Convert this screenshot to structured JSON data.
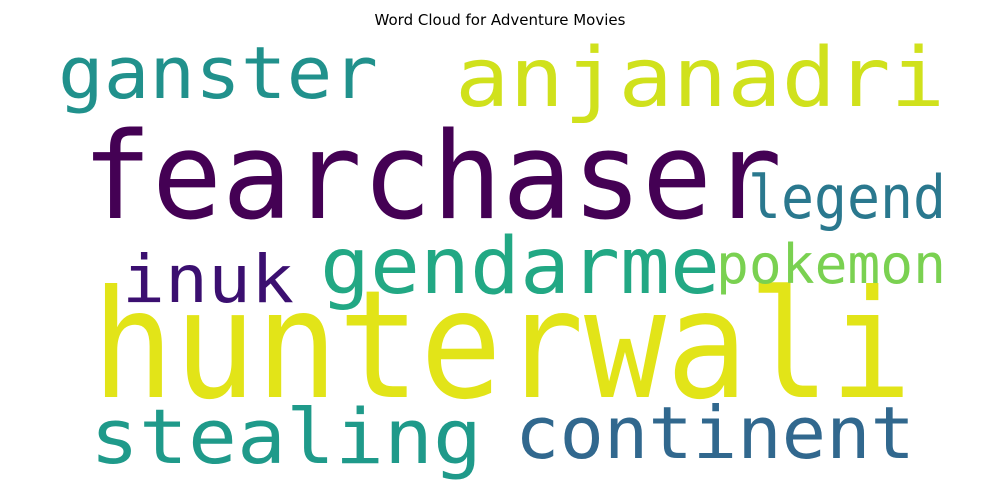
{
  "chart_data": {
    "type": "wordcloud",
    "title": "Word Cloud for Adventure Movies",
    "words": [
      {
        "text": "hunterwali",
        "color": "#e2e418"
      },
      {
        "text": "fearchaser",
        "color": "#440154"
      },
      {
        "text": "anjanadri",
        "color": "#d0e11c"
      },
      {
        "text": "ganster",
        "color": "#21918c"
      },
      {
        "text": "gendarme",
        "color": "#22a884"
      },
      {
        "text": "legend",
        "color": "#2a788e"
      },
      {
        "text": "inuk",
        "color": "#3b0f70"
      },
      {
        "text": "pokemon",
        "color": "#7ad151"
      },
      {
        "text": "stealing",
        "color": "#1f9a8a"
      },
      {
        "text": "continent",
        "color": "#31688e"
      }
    ]
  }
}
